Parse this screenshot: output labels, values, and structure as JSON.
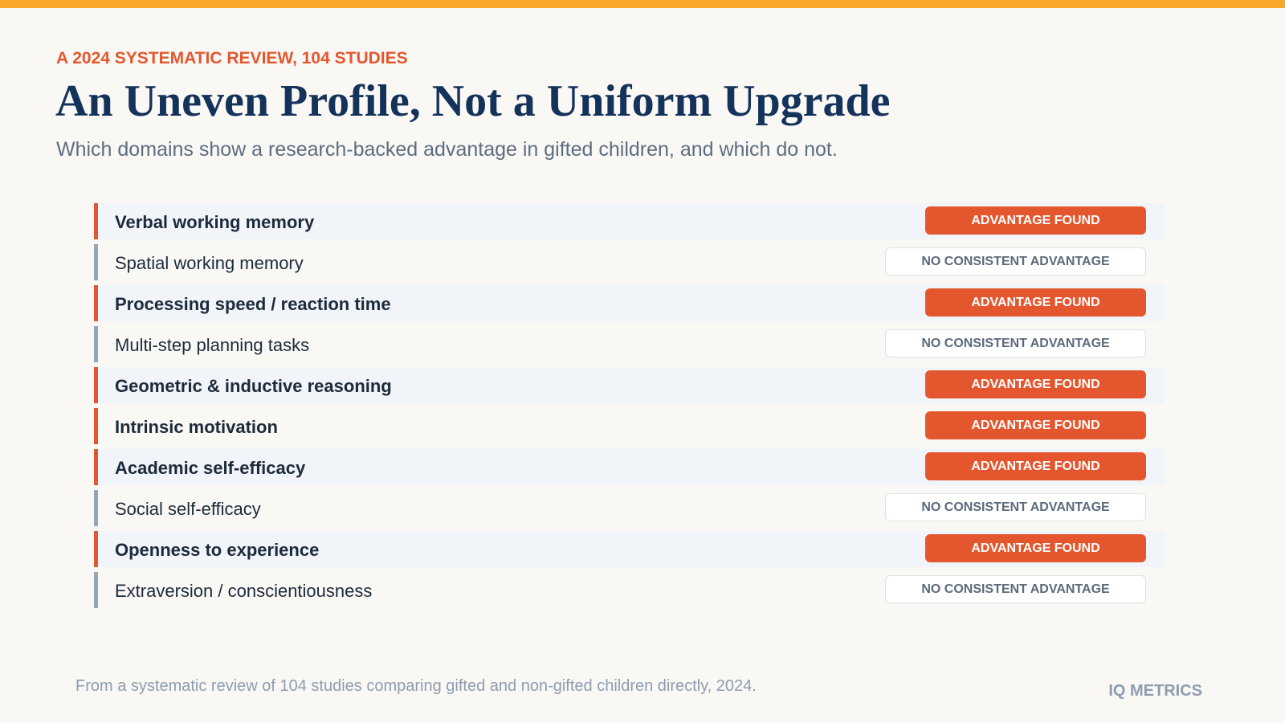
{
  "eyebrow": "A 2024 SYSTEMATIC REVIEW, 104 STUDIES",
  "title": "An Uneven Profile, Not a Uniform Upgrade",
  "subtitle": "Which domains show a research-backed advantage in gifted children, and which do not.",
  "rows": [
    {
      "label": "Verbal working memory",
      "badge": "ADVANTAGE FOUND",
      "emphasis": true
    },
    {
      "label": "Spatial working memory",
      "badge": "NO CONSISTENT ADVANTAGE",
      "emphasis": false
    },
    {
      "label": "Processing speed / reaction time",
      "badge": "ADVANTAGE FOUND",
      "emphasis": true
    },
    {
      "label": "Multi-step planning tasks",
      "badge": "NO CONSISTENT ADVANTAGE",
      "emphasis": false
    },
    {
      "label": "Geometric & inductive reasoning",
      "badge": "ADVANTAGE FOUND",
      "emphasis": true
    },
    {
      "label": "Intrinsic motivation",
      "badge": "ADVANTAGE FOUND",
      "emphasis": true
    },
    {
      "label": "Academic self-efficacy",
      "badge": "ADVANTAGE FOUND",
      "emphasis": true
    },
    {
      "label": "Social self-efficacy",
      "badge": "NO CONSISTENT ADVANTAGE",
      "emphasis": false
    },
    {
      "label": "Openness to experience",
      "badge": "ADVANTAGE FOUND",
      "emphasis": true
    },
    {
      "label": "Extraversion / conscientiousness",
      "badge": "NO CONSISTENT ADVANTAGE",
      "emphasis": false
    }
  ],
  "source": "From a systematic review of 104 studies comparing gifted and non-gifted children directly, 2024.",
  "brand": "IQ METRICS"
}
